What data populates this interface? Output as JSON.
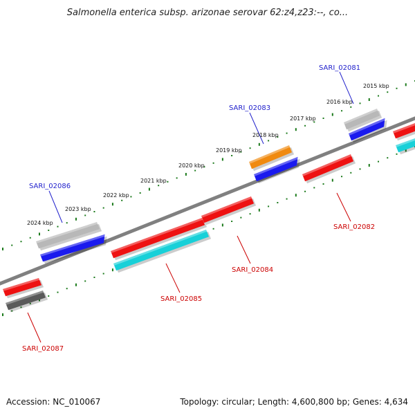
{
  "title": "Salmonella enterica subsp. arizonae serovar 62:z4,z23:--, co...",
  "footer": {
    "accession": "Accession: NC_010067",
    "stats": "Topology: circular; Length: 4,600,800 bp; Genes: 4,634"
  },
  "tick_labels": [
    "2015 kbp",
    "2016 kbp",
    "2017 kbp",
    "2018 kbp",
    "2019 kbp",
    "2020 kbp",
    "2021 kbp",
    "2022 kbp",
    "2023 kbp",
    "2024 kbp"
  ],
  "genes": [
    {
      "id": "SARI_02081",
      "strand": "forward",
      "color": "#2222cc"
    },
    {
      "id": "SARI_02082",
      "strand": "reverse",
      "color": "#cc0000"
    },
    {
      "id": "SARI_02083",
      "strand": "forward",
      "color": "#2222cc"
    },
    {
      "id": "SARI_02084",
      "strand": "reverse",
      "color": "#cc0000"
    },
    {
      "id": "SARI_02085",
      "strand": "reverse",
      "color": "#cc0000"
    },
    {
      "id": "SARI_02086",
      "strand": "forward",
      "color": "#2222cc"
    },
    {
      "id": "SARI_02087",
      "strand": "reverse",
      "color": "#cc0000"
    }
  ],
  "colors": {
    "cds": "#1a1aee",
    "orf_red": "#ee1111",
    "cyan": "#18d0d8",
    "orange": "#f08a10",
    "gray_light": "#b8b8b8",
    "gray_dark": "#5a5a5a",
    "backbone": "#808080",
    "tick_green": "#1b7a1b"
  }
}
